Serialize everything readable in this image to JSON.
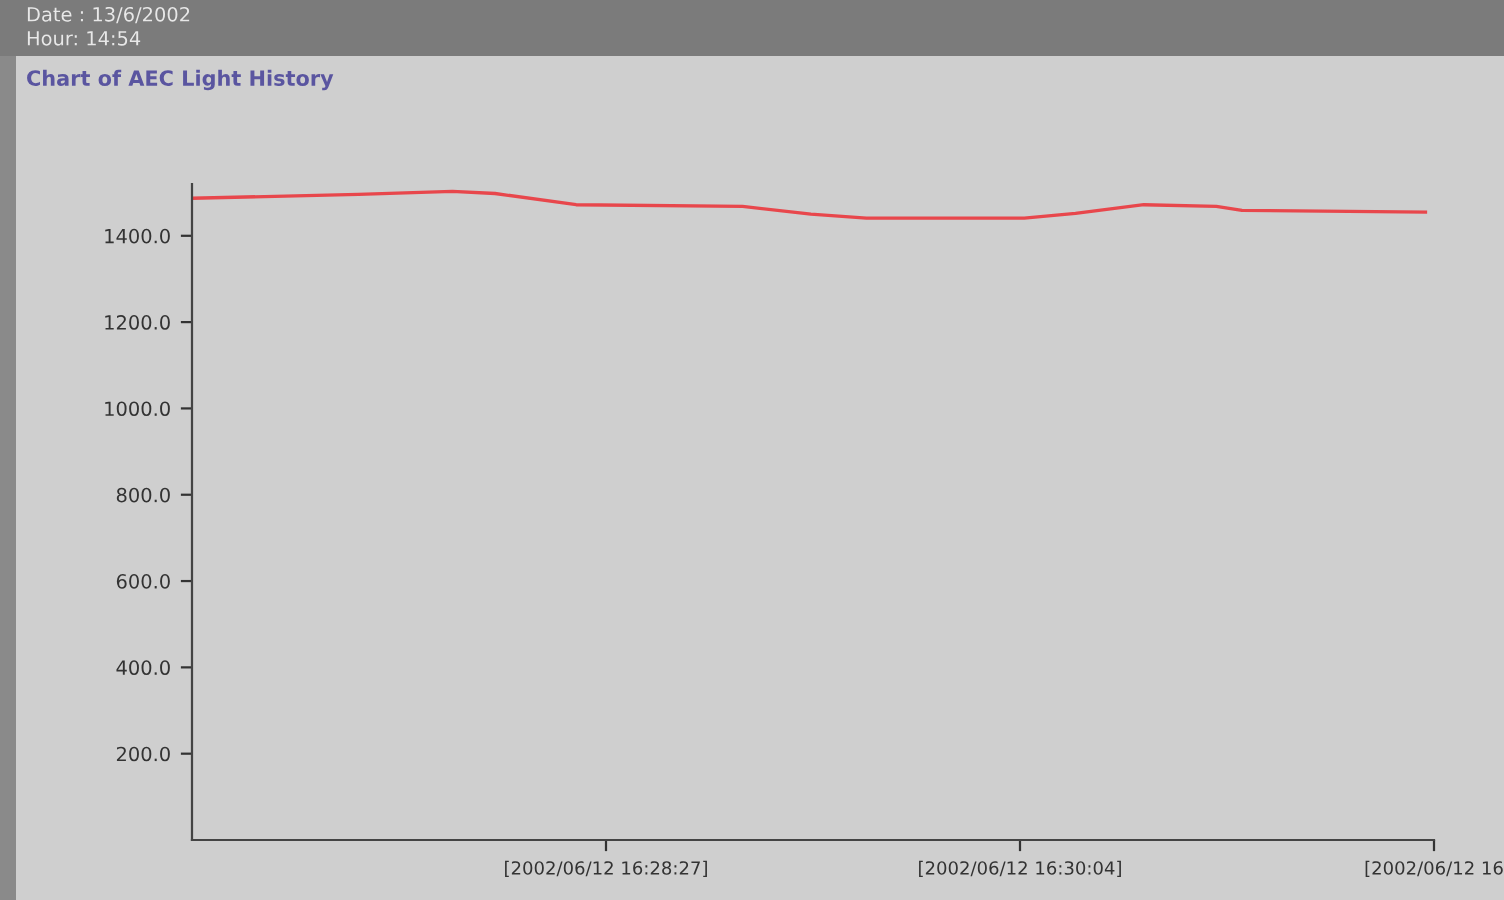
{
  "chart_data": {
    "type": "line",
    "title": "Chart of AEC Light History",
    "annotations": [
      "Date : 13/6/2002",
      "Hour: 14:54"
    ],
    "series": [
      {
        "color": "#e8474c",
        "x": [
          "2002-06-12T16:26:50",
          "2002-06-12T16:27:29",
          "2002-06-12T16:27:51",
          "2002-06-12T16:28:01",
          "2002-06-12T16:28:20",
          "2002-06-12T16:28:59",
          "2002-06-12T16:29:15",
          "2002-06-12T16:29:28",
          "2002-06-12T16:30:05",
          "2002-06-12T16:30:17",
          "2002-06-12T16:30:33",
          "2002-06-12T16:30:50",
          "2002-06-12T16:30:56",
          "2002-06-12T16:31:39"
        ],
        "values": [
          1487,
          1496,
          1503,
          1498,
          1472,
          1468,
          1450,
          1441,
          1441,
          1452,
          1472,
          1468,
          1459,
          1455
        ]
      }
    ],
    "xlim": [
      "2002-06-12T16:26:50",
      "2002-06-12T16:31:41"
    ],
    "xticks": [
      {
        "value": "2002-06-12T16:28:27",
        "label": "[2002/06/12 16:28:27]"
      },
      {
        "value": "2002-06-12T16:30:04",
        "label": "[2002/06/12 16:30:04]"
      },
      {
        "value": "2002-06-12T16:31:41",
        "label": "[2002/06/12 16"
      }
    ],
    "ylim": [
      0,
      1520
    ],
    "yticks": [
      {
        "value": 200,
        "label": "200.0"
      },
      {
        "value": 400,
        "label": "400.0"
      },
      {
        "value": 600,
        "label": "600.0"
      },
      {
        "value": 800,
        "label": "800.0"
      },
      {
        "value": 1000,
        "label": "1000.0"
      },
      {
        "value": 1200,
        "label": "1200.0"
      },
      {
        "value": 1400,
        "label": "1400.0"
      }
    ],
    "grid": false,
    "legend": false,
    "marker": "none",
    "line_style": "solid"
  }
}
